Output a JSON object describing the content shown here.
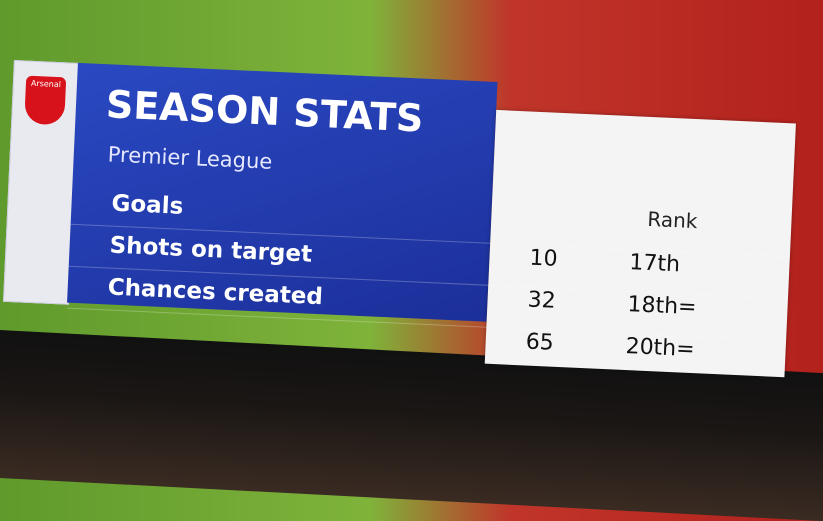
{
  "badge": {
    "text": "Arsenal"
  },
  "header": {
    "title": "SEASON STATS",
    "subtitle": "Premier League",
    "rank_label": "Rank"
  },
  "table": {
    "rows": [
      [
        "Goals",
        "10",
        "17th"
      ],
      [
        "Shots on target",
        "32",
        "18th="
      ],
      [
        "Chances created",
        "65",
        "20th="
      ]
    ]
  }
}
